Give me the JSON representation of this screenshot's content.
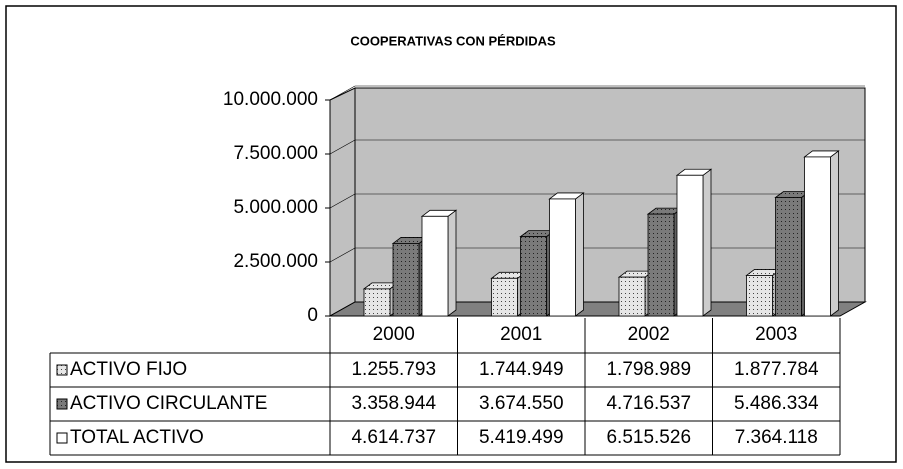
{
  "chart_data": {
    "type": "bar",
    "title": "COOPERATIVAS CON PÉRDIDAS",
    "categories": [
      "2000",
      "2001",
      "2002",
      "2003"
    ],
    "series": [
      {
        "name": "ACTIVO FIJO",
        "color": "#e6e6e6",
        "values": [
          1255793,
          1744949,
          1798989,
          1877784
        ],
        "value_labels": [
          "1.255.793",
          "1.744.949",
          "1.798.989",
          "1.877.784"
        ]
      },
      {
        "name": "ACTIVO CIRCULANTE",
        "color": "#7a7a7a",
        "values": [
          3358944,
          3674550,
          4716537,
          5486334
        ],
        "value_labels": [
          "3.358.944",
          "3.674.550",
          "4.716.537",
          "5.486.334"
        ]
      },
      {
        "name": "TOTAL  ACTIVO",
        "color": "#ffffff",
        "values": [
          4614737,
          5419499,
          6515526,
          7364118
        ],
        "value_labels": [
          "4.614.737",
          "5.419.499",
          "6.515.526",
          "7.364.118"
        ]
      }
    ],
    "ylim": [
      0,
      10000000
    ],
    "yticks": [
      0,
      {
        "value": 2500000,
        "label": "2.500.000"
      },
      {
        "value": 5000000,
        "label": "5.000.000"
      },
      {
        "value": 7500000,
        "label": "7.500.000"
      },
      {
        "value": 10000000,
        "label": "10.000.000"
      }
    ],
    "grid": true
  }
}
